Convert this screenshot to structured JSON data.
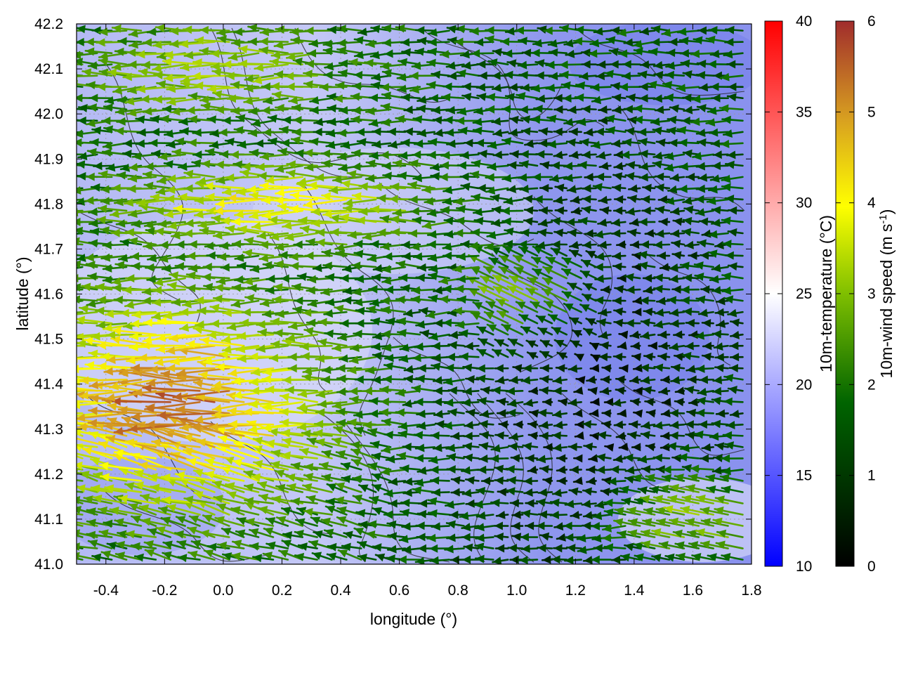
{
  "chart_data": {
    "type": "vector-field",
    "title": "",
    "xlabel": "longitude (°)",
    "ylabel": "latitude (°)",
    "xlim": [
      -0.5,
      1.8
    ],
    "ylim": [
      41.0,
      42.2
    ],
    "xticks": [
      "-0.4",
      "-0.2",
      "0.0",
      "0.2",
      "0.4",
      "0.6",
      "0.8",
      "1.0",
      "1.2",
      "1.4",
      "1.6",
      "1.8"
    ],
    "xtick_values": [
      -0.4,
      -0.2,
      0.0,
      0.2,
      0.4,
      0.6,
      0.8,
      1.0,
      1.2,
      1.4,
      1.6,
      1.8
    ],
    "yticks": [
      "41.0",
      "41.1",
      "41.2",
      "41.3",
      "41.4",
      "41.5",
      "41.6",
      "41.7",
      "41.8",
      "41.9",
      "42.0",
      "42.1",
      "42.2"
    ],
    "ytick_values": [
      41.0,
      41.1,
      41.2,
      41.3,
      41.4,
      41.5,
      41.6,
      41.7,
      41.8,
      41.9,
      42.0,
      42.1,
      42.2
    ],
    "grid": true,
    "background_field": {
      "name": "10m-temperature",
      "colorbar_label": "10m-temperature (°C)",
      "range": [
        10,
        40
      ],
      "ticks": [
        "10",
        "15",
        "20",
        "25",
        "30",
        "35",
        "40"
      ],
      "tick_values": [
        10,
        15,
        20,
        25,
        30,
        35,
        40
      ],
      "colors": [
        "#0000ff",
        "#ffffff",
        "#ff0000"
      ],
      "typical_values": [
        16,
        23
      ]
    },
    "vector_field": {
      "name": "10m-wind speed",
      "colorbar_label_main": "10m-wind speed (m s",
      "colorbar_label_sup": "-1",
      "colorbar_label_end": ")",
      "range": [
        0,
        6
      ],
      "ticks": [
        "0",
        "1",
        "2",
        "3",
        "4",
        "5",
        "6"
      ],
      "tick_values": [
        0,
        1,
        2,
        3,
        4,
        5,
        6
      ],
      "colors": [
        "#000000",
        "#006400",
        "#7fbf00",
        "#ffff00",
        "#d8a020",
        "#a02c2c"
      ],
      "prevailing_direction": "from east (vectors point west)"
    },
    "contours": {
      "color": "#222222",
      "description": "terrain contour lines"
    }
  }
}
